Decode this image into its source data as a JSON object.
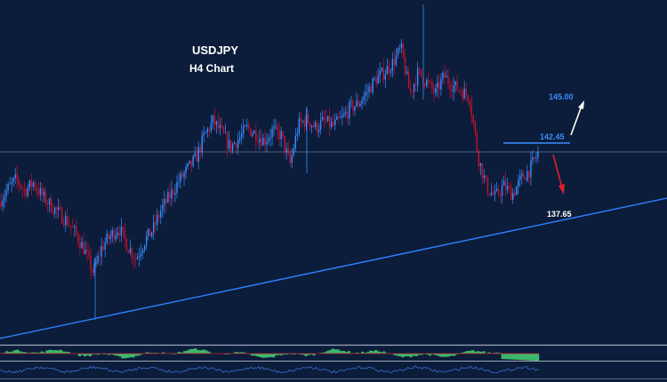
{
  "chart_data": {
    "type": "candlestick",
    "title": "USDJPY",
    "subtitle": "H4 Chart",
    "levels": [
      {
        "label": "145.00",
        "value": 145.0,
        "color": "#3d8bff"
      },
      {
        "label": "142.45",
        "value": 142.45,
        "color": "#3d8bff"
      },
      {
        "label": "137.65",
        "value": 137.65,
        "color": "#ffffff"
      }
    ],
    "projections": [
      {
        "direction": "up",
        "color": "#ffffff"
      },
      {
        "direction": "down",
        "color": "#e0202a"
      }
    ],
    "trendline": {
      "color": "#2f7fff",
      "from": 133.8,
      "to": 139.1
    },
    "horizontal_line": {
      "value": 142.1,
      "color": "#8a9bb8"
    },
    "price_path": [
      138.8,
      139.6,
      140.2,
      139.5,
      140.0,
      139.2,
      138.6,
      138.1,
      137.6,
      136.8,
      135.8,
      134.4,
      136.0,
      136.7,
      137.2,
      136.1,
      135.3,
      136.4,
      137.1,
      138.4,
      139.2,
      140.1,
      140.8,
      141.5,
      142.9,
      143.8,
      143.1,
      142.2,
      142.7,
      143.4,
      143.0,
      142.6,
      143.2,
      142.9,
      141.1,
      143.6,
      143.9,
      143.4,
      143.8,
      143.5,
      143.9,
      144.6,
      144.9,
      145.6,
      146.4,
      146.8,
      147.4,
      148.3,
      145.5,
      146.8,
      146.2,
      145.5,
      146.6,
      146.0,
      145.7,
      145.3,
      141.6,
      139.7,
      139.1,
      139.8,
      139.3,
      140.2,
      140.8,
      141.8
    ],
    "colors": {
      "up": "#3d8bff",
      "down": "#c8102e",
      "background": "#0b1d3a"
    }
  }
}
